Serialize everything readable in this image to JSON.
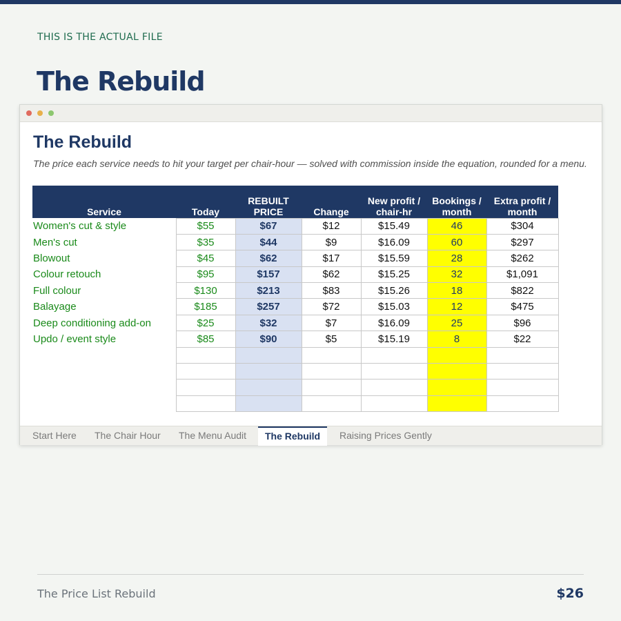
{
  "page": {
    "eyebrow": "THIS IS THE ACTUAL FILE",
    "title": "The Rebuild",
    "footer_left": "The Price List Rebuild",
    "footer_right": "$26"
  },
  "colors": {
    "navy": "#1f3864",
    "green_text": "#1a8a1a",
    "rebuilt_fill": "#d9e1f2",
    "bookings_fill": "#ffff00"
  },
  "window": {
    "controls": [
      "close-dot",
      "minimize-dot",
      "maximize-dot"
    ]
  },
  "sheet": {
    "title": "The Rebuild",
    "subtitle": "The price each service needs to hit your target per chair-hour — solved with commission inside the equation, rounded for a menu.",
    "headers": {
      "service": "Service",
      "today": "Today",
      "rebuilt_1": "REBUILT",
      "rebuilt_2": "PRICE",
      "change": "Change",
      "profit_1": "New profit /",
      "profit_2": "chair-hr",
      "bookings_1": "Bookings /",
      "bookings_2": "month",
      "extra_1": "Extra profit /",
      "extra_2": "month"
    },
    "rows": [
      {
        "service": "Women's cut & style",
        "today": "$55",
        "rebuilt": "$67",
        "change": "$12",
        "profit": "$15.49",
        "bookings": "46",
        "extra": "$304"
      },
      {
        "service": "Men's cut",
        "today": "$35",
        "rebuilt": "$44",
        "change": "$9",
        "profit": "$16.09",
        "bookings": "60",
        "extra": "$297"
      },
      {
        "service": "Blowout",
        "today": "$45",
        "rebuilt": "$62",
        "change": "$17",
        "profit": "$15.59",
        "bookings": "28",
        "extra": "$262"
      },
      {
        "service": "Colour retouch",
        "today": "$95",
        "rebuilt": "$157",
        "change": "$62",
        "profit": "$15.25",
        "bookings": "32",
        "extra": "$1,091"
      },
      {
        "service": "Full colour",
        "today": "$130",
        "rebuilt": "$213",
        "change": "$83",
        "profit": "$15.26",
        "bookings": "18",
        "extra": "$822"
      },
      {
        "service": "Balayage",
        "today": "$185",
        "rebuilt": "$257",
        "change": "$72",
        "profit": "$15.03",
        "bookings": "12",
        "extra": "$475"
      },
      {
        "service": "Deep conditioning add-on",
        "today": "$25",
        "rebuilt": "$32",
        "change": "$7",
        "profit": "$16.09",
        "bookings": "25",
        "extra": "$96"
      },
      {
        "service": "Updo / event style",
        "today": "$85",
        "rebuilt": "$90",
        "change": "$5",
        "profit": "$15.19",
        "bookings": "8",
        "extra": "$22"
      },
      {
        "service": "",
        "today": "",
        "rebuilt": "",
        "change": "",
        "profit": "",
        "bookings": "",
        "extra": ""
      },
      {
        "service": "",
        "today": "",
        "rebuilt": "",
        "change": "",
        "profit": "",
        "bookings": "",
        "extra": ""
      },
      {
        "service": "",
        "today": "",
        "rebuilt": "",
        "change": "",
        "profit": "",
        "bookings": "",
        "extra": ""
      },
      {
        "service": "",
        "today": "",
        "rebuilt": "",
        "change": "",
        "profit": "",
        "bookings": "",
        "extra": ""
      }
    ]
  },
  "tabs": [
    {
      "label": "Start Here",
      "active": false
    },
    {
      "label": "The Chair Hour",
      "active": false
    },
    {
      "label": "The Menu Audit",
      "active": false
    },
    {
      "label": "The Rebuild",
      "active": true
    },
    {
      "label": "Raising Prices Gently",
      "active": false
    }
  ]
}
